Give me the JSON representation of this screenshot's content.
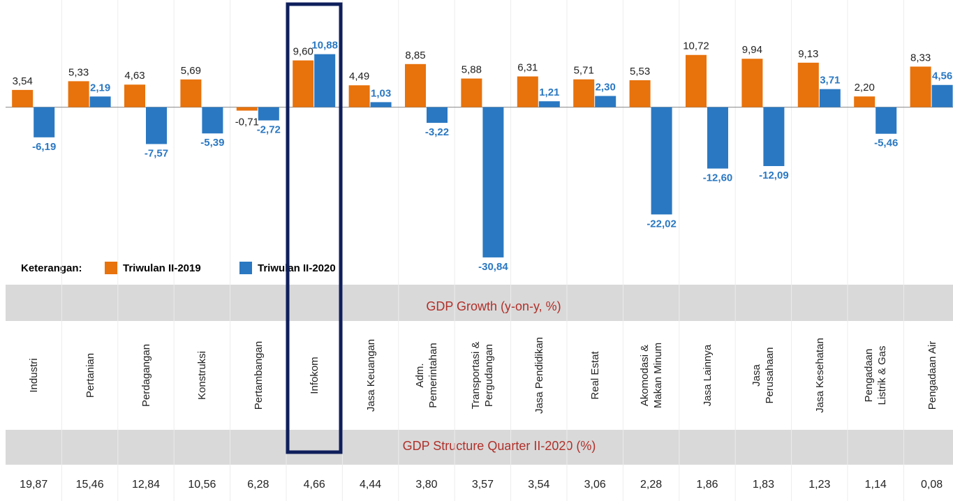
{
  "chart_data": {
    "type": "bar",
    "categories": [
      "Industri",
      "Pertanian",
      "Perdagangan",
      "Konstruksi",
      "Pertambangan",
      "Infokom",
      "Jasa Keuangan",
      "Adm.\nPemerintahan",
      "Transportasi &\nPergudangan",
      "Jasa Pendidikan",
      "Real Estat",
      "Akomodasi &\nMakan Minum",
      "Jasa Lainnya",
      "Jasa\nPerusahaan",
      "Jasa Kesehatan",
      "Pengadaan\nListrik & Gas",
      "Pengadaan Air"
    ],
    "series": [
      {
        "name": "Triwulan II-2019",
        "color": "#e8720c",
        "values": [
          3.54,
          5.33,
          4.63,
          5.69,
          -0.71,
          9.6,
          4.49,
          8.85,
          5.88,
          6.31,
          5.71,
          5.53,
          10.72,
          9.94,
          9.13,
          2.2,
          8.33
        ],
        "value_labels": [
          "3,54",
          "5,33",
          "4,63",
          "5,69",
          "-0,71",
          "9,60",
          "4,49",
          "8,85",
          "5,88",
          "6,31",
          "5,71",
          "5,53",
          "10,72",
          "9,94",
          "9,13",
          "2,20",
          "8,33"
        ]
      },
      {
        "name": "Triwulan II-2020",
        "color": "#2a78c2",
        "values": [
          -6.19,
          2.19,
          -7.57,
          -5.39,
          -2.72,
          10.88,
          1.03,
          -3.22,
          -30.84,
          1.21,
          2.3,
          -22.02,
          -12.6,
          -12.09,
          3.71,
          -5.46,
          4.56
        ],
        "value_labels": [
          "-6,19",
          "2,19",
          "-7,57",
          "-5,39",
          "-2,72",
          "10,88",
          "1,03",
          "-3,22",
          "-30,84",
          "1,21",
          "2,30",
          "-22,02",
          "-12,60",
          "-12,09",
          "3,71",
          "-5,46",
          "4,56"
        ]
      }
    ],
    "ylim": [
      -32,
      22
    ],
    "legend_title": "Keterangan:",
    "x_label": "GDP Growth (y-on-y, %)"
  },
  "structure": {
    "title": "GDP Structure Quarter II-2020 (%)",
    "values": [
      "19,87",
      "15,46",
      "12,84",
      "10,56",
      "6,28",
      "4,66",
      "4,44",
      "3,80",
      "3,57",
      "3,54",
      "3,06",
      "2,28",
      "1,86",
      "1,83",
      "1,23",
      "1,14",
      "0,08"
    ]
  }
}
